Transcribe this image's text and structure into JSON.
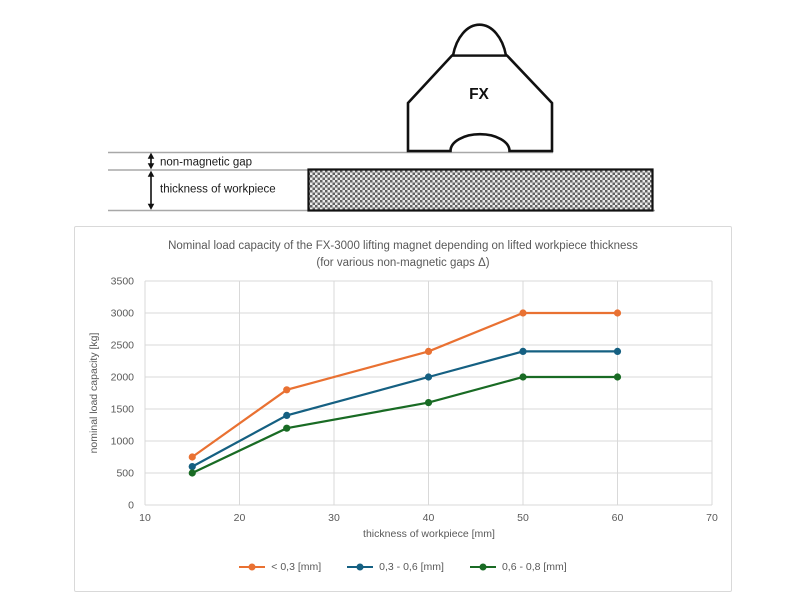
{
  "diagram": {
    "magnet_label": "FX",
    "gap_label": "non-magnetic gap",
    "thickness_label": "thickness of workpiece"
  },
  "chart_data": {
    "type": "line",
    "title": "Nominal load capacity of the FX-3000 lifting magnet depending on lifted workpiece thickness",
    "subtitle": "(for various non-magnetic gaps Δ)",
    "xlabel": "thickness of workpiece [mm]",
    "ylabel": "nominal load capacity [kg]",
    "x": [
      15,
      25,
      40,
      50,
      60
    ],
    "series": [
      {
        "name": "< 0,3 [mm]",
        "color": "#E97132",
        "values": [
          750,
          1800,
          2400,
          3000,
          3000
        ]
      },
      {
        "name": "0,3 - 0,6 [mm]",
        "color": "#156082",
        "values": [
          600,
          1400,
          2000,
          2400,
          2400
        ]
      },
      {
        "name": "0,6 - 0,8 [mm]",
        "color": "#196B24",
        "values": [
          500,
          1200,
          1600,
          2000,
          2000
        ]
      }
    ],
    "xlim": [
      10,
      70
    ],
    "ylim": [
      0,
      3500
    ],
    "x_ticks": [
      10,
      20,
      30,
      40,
      50,
      60,
      70
    ],
    "y_ticks": [
      0,
      500,
      1000,
      1500,
      2000,
      2500,
      3000,
      3500
    ],
    "grid": true,
    "legend_position": "bottom",
    "colors": {
      "grid": "#d9d9d9",
      "text": "#595959"
    }
  }
}
